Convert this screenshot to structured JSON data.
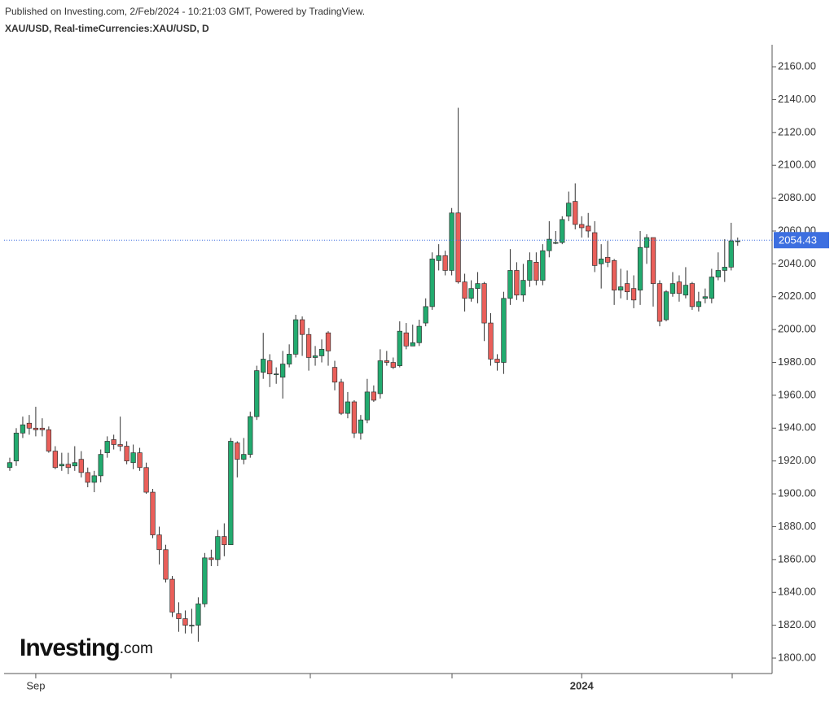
{
  "header": {
    "published": "Published on Investing.com, 2/Feb/2024 - 10:21:03 GMT, Powered by TradingView.",
    "symbol": "XAU/USD, Real-timeCurrencies:XAU/USD, D"
  },
  "logo": {
    "brand": "Investing",
    "suffix": ".com"
  },
  "chart_data": {
    "type": "candlestick",
    "categories": [
      null,
      null,
      null,
      null,
      "Sep",
      null,
      null,
      null,
      null,
      null,
      null,
      null,
      null,
      null,
      null,
      null,
      null,
      null,
      null,
      null,
      null,
      null,
      null,
      null,
      null,
      null,
      null,
      null,
      null,
      null,
      null,
      null,
      null,
      null,
      null,
      null,
      null,
      null,
      null,
      null,
      null,
      null,
      null,
      null,
      null,
      null,
      null,
      null,
      null,
      null,
      null,
      null,
      null,
      null,
      null,
      null,
      null,
      null,
      null,
      null,
      null,
      null,
      null,
      null,
      null,
      null,
      null,
      null,
      null,
      null,
      null,
      null,
      null,
      null,
      null,
      null,
      null,
      null,
      null,
      null,
      null,
      null,
      null,
      null,
      null,
      null,
      null,
      null,
      "2024",
      null,
      null,
      null,
      null,
      null,
      null,
      null,
      null,
      null,
      null,
      null,
      null,
      null,
      null,
      null,
      null,
      null,
      null,
      null,
      null,
      null,
      null,
      null,
      null
    ],
    "open": [
      1916,
      1920,
      1937,
      1943,
      1940,
      1940,
      1939,
      1926,
      1917,
      1918,
      1917,
      1921,
      1913,
      1907,
      1911,
      1925,
      1933,
      1930,
      1929,
      1919,
      1925,
      1916,
      1901,
      1875,
      1866,
      1848,
      1827,
      1824,
      1820,
      1820,
      1833,
      1861,
      1860,
      1874,
      1869,
      1931,
      1921,
      1924,
      1947,
      1974,
      1981,
      1973,
      1971,
      1979,
      1985,
      2006,
      1997,
      1983,
      1984,
      1998,
      1977,
      1968,
      1949,
      1956,
      1937,
      1945,
      1962,
      1961,
      1981,
      1980,
      1978,
      1998,
      1990,
      1992,
      2004,
      2014,
      2042,
      2045,
      2036,
      2071,
      2029,
      2019,
      2025,
      2028,
      2004,
      1982,
      1980,
      2019,
      2036,
      2021,
      2030,
      2041,
      2030,
      2048,
      2053,
      2053,
      2069,
      2078,
      2064,
      2063,
      2059,
      2040,
      2044,
      2042,
      2024,
      2028,
      2025,
      2024,
      2050,
      2056,
      2028,
      2006,
      2022,
      2029,
      2021,
      2028,
      2014,
      2019,
      2019,
      2032,
      2036,
      2038,
      2054
    ],
    "high": [
      1922,
      1940,
      1947,
      1948,
      1953,
      1946,
      1941,
      1929,
      1925,
      1925,
      1929,
      1926,
      1916,
      1914,
      1927,
      1935,
      1936,
      1947,
      1932,
      1930,
      1928,
      1919,
      1903,
      1880,
      1869,
      1850,
      1834,
      1829,
      1830,
      1837,
      1864,
      1866,
      1878,
      1882,
      1934,
      1932,
      1934,
      1950,
      1978,
      1998,
      1985,
      1977,
      1987,
      1991,
      2009,
      2008,
      2001,
      1990,
      1994,
      1999,
      1981,
      1970,
      1962,
      1957,
      1948,
      1970,
      1966,
      1988,
      1987,
      1983,
      2005,
      2004,
      2003,
      2006,
      2019,
      2047,
      2052,
      2048,
      2074,
      2135,
      2034,
      2030,
      2035,
      2029,
      2010,
      1985,
      2023,
      2049,
      2041,
      2040,
      2047,
      2047,
      2052,
      2066,
      2060,
      2069,
      2084,
      2089,
      2069,
      2071,
      2066,
      2052,
      2054,
      2043,
      2037,
      2036,
      2033,
      2060,
      2058,
      2056,
      2030,
      2024,
      2035,
      2033,
      2038,
      2029,
      2023,
      2025,
      2037,
      2047,
      2055,
      2065,
      2056
    ],
    "low": [
      1914,
      1917,
      1934,
      1936,
      1935,
      1935,
      1925,
      1915,
      1914,
      1912,
      1914,
      1910,
      1904,
      1901,
      1907,
      1922,
      1927,
      1926,
      1918,
      1915,
      1914,
      1900,
      1873,
      1857,
      1846,
      1825,
      1816,
      1815,
      1815,
      1810,
      1831,
      1856,
      1856,
      1862,
      1869,
      1910,
      1918,
      1922,
      1945,
      1970,
      1965,
      1967,
      1958,
      1977,
      1983,
      1984,
      1975,
      1978,
      1980,
      1978,
      1963,
      1948,
      1946,
      1934,
      1933,
      1943,
      1956,
      1958,
      1978,
      1976,
      1977,
      1988,
      1990,
      1990,
      2002,
      2012,
      2036,
      2033,
      2033,
      2028,
      2011,
      2017,
      2016,
      1993,
      1978,
      1975,
      1973,
      2015,
      2018,
      2017,
      2026,
      2027,
      2027,
      2044,
      2052,
      2052,
      2066,
      2061,
      2056,
      2056,
      2035,
      2025,
      2038,
      2015,
      2019,
      2018,
      2013,
      2015,
      2040,
      2014,
      2002,
      2005,
      2020,
      2017,
      2019,
      2012,
      2011,
      2016,
      2016,
      2030,
      2029,
      2036,
      2051
    ],
    "close": [
      1919,
      1937,
      1942,
      1940,
      1939,
      1939,
      1926,
      1916,
      1918,
      1916,
      1919,
      1913,
      1907,
      1911,
      1924,
      1932,
      1930,
      1929,
      1920,
      1925,
      1916,
      1901,
      1875,
      1866,
      1848,
      1828,
      1824,
      1820,
      1820,
      1833,
      1861,
      1860,
      1874,
      1869,
      1932,
      1921,
      1924,
      1947,
      1975,
      1982,
      1973,
      1973,
      1979,
      1985,
      2006,
      1997,
      1983,
      1984,
      1988,
      1987,
      1968,
      1949,
      1956,
      1937,
      1945,
      1962,
      1957,
      1981,
      1980,
      1977,
      1999,
      1990,
      1992,
      2002,
      2014,
      2043,
      2045,
      2036,
      2071,
      2029,
      2019,
      2025,
      2028,
      2004,
      1982,
      1980,
      2019,
      2036,
      2021,
      2030,
      2042,
      2030,
      2048,
      2055,
      2053,
      2067,
      2077,
      2064,
      2062,
      2060,
      2039,
      2043,
      2041,
      2024,
      2026,
      2023,
      2018,
      2050,
      2056,
      2028,
      2005,
      2023,
      2028,
      2022,
      2027,
      2014,
      2017,
      2020,
      2032,
      2036,
      2038,
      2054,
      2054
    ],
    "up_color": "#22ab6f",
    "down_color": "#ea5f5a",
    "ylim": [
      1790.6,
      2173.4
    ],
    "yticks": [
      {
        "value": 1800,
        "label": "1800.00"
      },
      {
        "value": 1820,
        "label": "1820.00"
      },
      {
        "value": 1840,
        "label": "1840.00"
      },
      {
        "value": 1860,
        "label": "1860.00"
      },
      {
        "value": 1880,
        "label": "1880.00"
      },
      {
        "value": 1900,
        "label": "1900.00"
      },
      {
        "value": 1920,
        "label": "1920.00"
      },
      {
        "value": 1940,
        "label": "1940.00"
      },
      {
        "value": 1960,
        "label": "1960.00"
      },
      {
        "value": 1980,
        "label": "1980.00"
      },
      {
        "value": 2000,
        "label": "2000.00"
      },
      {
        "value": 2020,
        "label": "2020.00"
      },
      {
        "value": 2040,
        "label": "2040.00"
      },
      {
        "value": 2060,
        "label": "2060.00"
      },
      {
        "value": 2080,
        "label": "2080.00"
      },
      {
        "value": 2100,
        "label": "2100.00"
      },
      {
        "value": 2120,
        "label": "2120.00"
      },
      {
        "value": 2140,
        "label": "2140.00"
      },
      {
        "value": 2160,
        "label": "2160.00"
      }
    ],
    "last_price": 2054.43,
    "last_price_color": "#3d6fe0"
  }
}
